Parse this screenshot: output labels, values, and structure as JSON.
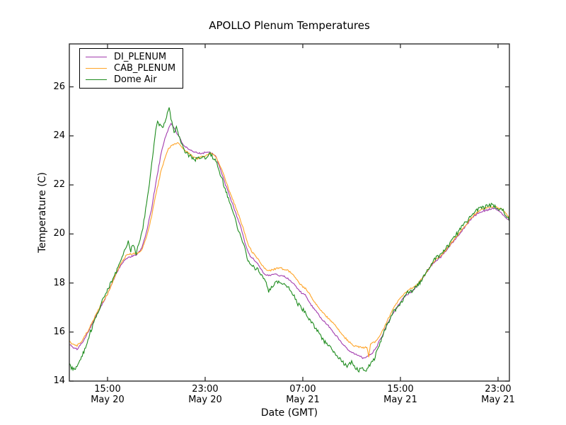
{
  "chart_data": {
    "type": "line",
    "title": "APOLLO Plenum Temperatures",
    "xlabel": "Date (GMT)",
    "ylabel": "Temperature (C)",
    "grid": false,
    "legend_position": "upper left",
    "x_axis_note": "hours since May 20 00:00 GMT",
    "xlim": [
      11.87,
      47.93
    ],
    "ylim": [
      14,
      27.75
    ],
    "yticks": [
      14,
      16,
      18,
      20,
      22,
      24,
      26
    ],
    "xticks": [
      {
        "t": 15,
        "time": "15:00",
        "date": "May 20"
      },
      {
        "t": 23,
        "time": "23:00",
        "date": "May 20"
      },
      {
        "t": 31,
        "time": "07:00",
        "date": "May 21"
      },
      {
        "t": 39,
        "time": "15:00",
        "date": "May 21"
      },
      {
        "t": 47,
        "time": "23:00",
        "date": "May 21"
      }
    ],
    "frame_color": "#2e2e2e",
    "series": [
      {
        "name": "DI_PLENUM",
        "color": "#a23bae",
        "noise": 0.035,
        "points": [
          [
            11.9,
            15.5
          ],
          [
            12.2,
            15.35
          ],
          [
            12.5,
            15.3
          ],
          [
            12.9,
            15.55
          ],
          [
            13.4,
            16.0
          ],
          [
            13.9,
            16.5
          ],
          [
            14.4,
            17.0
          ],
          [
            15.0,
            17.55
          ],
          [
            15.5,
            18.15
          ],
          [
            16.0,
            18.65
          ],
          [
            16.5,
            19.0
          ],
          [
            17.0,
            19.1
          ],
          [
            17.4,
            19.15
          ],
          [
            17.8,
            19.4
          ],
          [
            18.2,
            20.1
          ],
          [
            18.6,
            21.0
          ],
          [
            19.0,
            22.2
          ],
          [
            19.4,
            23.3
          ],
          [
            19.7,
            23.9
          ],
          [
            20.0,
            24.3
          ],
          [
            20.2,
            24.5
          ],
          [
            20.5,
            24.3
          ],
          [
            20.8,
            24.0
          ],
          [
            21.2,
            23.65
          ],
          [
            21.6,
            23.45
          ],
          [
            22.0,
            23.35
          ],
          [
            22.4,
            23.3
          ],
          [
            22.8,
            23.3
          ],
          [
            23.2,
            23.35
          ],
          [
            23.6,
            23.3
          ],
          [
            23.9,
            23.15
          ],
          [
            24.2,
            22.7
          ],
          [
            24.6,
            22.1
          ],
          [
            25.0,
            21.55
          ],
          [
            25.4,
            21.0
          ],
          [
            25.8,
            20.45
          ],
          [
            26.1,
            19.95
          ],
          [
            26.4,
            19.4
          ],
          [
            26.7,
            19.1
          ],
          [
            27.0,
            18.95
          ],
          [
            27.3,
            18.8
          ],
          [
            27.6,
            18.55
          ],
          [
            27.9,
            18.35
          ],
          [
            28.2,
            18.3
          ],
          [
            28.5,
            18.35
          ],
          [
            28.8,
            18.35
          ],
          [
            29.1,
            18.3
          ],
          [
            29.4,
            18.3
          ],
          [
            29.7,
            18.2
          ],
          [
            30.0,
            18.1
          ],
          [
            30.3,
            17.95
          ],
          [
            30.6,
            17.75
          ],
          [
            30.9,
            17.6
          ],
          [
            31.2,
            17.5
          ],
          [
            31.5,
            17.25
          ],
          [
            31.9,
            16.95
          ],
          [
            32.3,
            16.7
          ],
          [
            32.7,
            16.45
          ],
          [
            33.1,
            16.25
          ],
          [
            33.5,
            16.0
          ],
          [
            33.9,
            15.75
          ],
          [
            34.3,
            15.5
          ],
          [
            34.7,
            15.3
          ],
          [
            35.1,
            15.15
          ],
          [
            35.5,
            15.05
          ],
          [
            35.9,
            14.95
          ],
          [
            36.3,
            15.0
          ],
          [
            36.7,
            15.15
          ],
          [
            37.1,
            15.45
          ],
          [
            37.5,
            15.85
          ],
          [
            37.9,
            16.3
          ],
          [
            38.3,
            16.7
          ],
          [
            38.7,
            17.0
          ],
          [
            39.1,
            17.3
          ],
          [
            39.5,
            17.5
          ],
          [
            39.9,
            17.65
          ],
          [
            40.3,
            17.85
          ],
          [
            40.7,
            18.1
          ],
          [
            41.1,
            18.4
          ],
          [
            41.5,
            18.7
          ],
          [
            41.9,
            18.9
          ],
          [
            42.3,
            19.05
          ],
          [
            42.7,
            19.3
          ],
          [
            43.1,
            19.55
          ],
          [
            43.5,
            19.8
          ],
          [
            43.9,
            20.05
          ],
          [
            44.3,
            20.3
          ],
          [
            44.7,
            20.55
          ],
          [
            45.1,
            20.75
          ],
          [
            45.5,
            20.9
          ],
          [
            45.9,
            20.95
          ],
          [
            46.3,
            21.0
          ],
          [
            46.7,
            21.05
          ],
          [
            47.0,
            20.95
          ],
          [
            47.3,
            20.85
          ],
          [
            47.6,
            20.7
          ],
          [
            47.9,
            20.55
          ]
        ]
      },
      {
        "name": "CAB_PLENUM",
        "color": "#ffa428",
        "noise": 0.035,
        "points": [
          [
            11.9,
            15.6
          ],
          [
            12.2,
            15.5
          ],
          [
            12.5,
            15.45
          ],
          [
            12.9,
            15.65
          ],
          [
            13.4,
            16.05
          ],
          [
            13.9,
            16.55
          ],
          [
            14.4,
            17.05
          ],
          [
            15.0,
            17.55
          ],
          [
            15.5,
            18.15
          ],
          [
            16.0,
            18.7
          ],
          [
            16.5,
            19.1
          ],
          [
            17.0,
            19.2
          ],
          [
            17.4,
            19.2
          ],
          [
            17.8,
            19.35
          ],
          [
            18.2,
            19.9
          ],
          [
            18.6,
            20.7
          ],
          [
            19.0,
            21.7
          ],
          [
            19.4,
            22.6
          ],
          [
            19.7,
            23.1
          ],
          [
            20.0,
            23.5
          ],
          [
            20.4,
            23.65
          ],
          [
            20.8,
            23.7
          ],
          [
            21.1,
            23.55
          ],
          [
            21.5,
            23.35
          ],
          [
            21.9,
            23.2
          ],
          [
            22.3,
            23.05
          ],
          [
            22.7,
            23.15
          ],
          [
            23.1,
            23.2
          ],
          [
            23.5,
            23.3
          ],
          [
            23.8,
            23.2
          ],
          [
            24.0,
            23.0
          ],
          [
            24.3,
            22.7
          ],
          [
            24.7,
            22.15
          ],
          [
            25.1,
            21.6
          ],
          [
            25.5,
            21.1
          ],
          [
            25.9,
            20.55
          ],
          [
            26.2,
            20.1
          ],
          [
            26.5,
            19.6
          ],
          [
            26.8,
            19.3
          ],
          [
            27.1,
            19.1
          ],
          [
            27.4,
            18.95
          ],
          [
            27.7,
            18.7
          ],
          [
            28.0,
            18.55
          ],
          [
            28.3,
            18.5
          ],
          [
            28.6,
            18.55
          ],
          [
            28.9,
            18.6
          ],
          [
            29.2,
            18.6
          ],
          [
            29.5,
            18.55
          ],
          [
            29.8,
            18.5
          ],
          [
            30.1,
            18.4
          ],
          [
            30.4,
            18.2
          ],
          [
            30.7,
            18.0
          ],
          [
            31.0,
            17.85
          ],
          [
            31.3,
            17.75
          ],
          [
            31.6,
            17.5
          ],
          [
            32.0,
            17.2
          ],
          [
            32.4,
            16.95
          ],
          [
            32.8,
            16.7
          ],
          [
            33.2,
            16.5
          ],
          [
            33.6,
            16.3
          ],
          [
            34.0,
            16.05
          ],
          [
            34.4,
            15.8
          ],
          [
            34.8,
            15.6
          ],
          [
            35.2,
            15.45
          ],
          [
            35.6,
            15.4
          ],
          [
            36.0,
            15.35
          ],
          [
            36.25,
            15.4
          ],
          [
            36.4,
            15.0
          ],
          [
            36.55,
            15.5
          ],
          [
            36.9,
            15.6
          ],
          [
            37.2,
            15.75
          ],
          [
            37.6,
            16.1
          ],
          [
            38.0,
            16.55
          ],
          [
            38.4,
            16.95
          ],
          [
            38.8,
            17.25
          ],
          [
            39.2,
            17.5
          ],
          [
            39.6,
            17.7
          ],
          [
            40.0,
            17.8
          ],
          [
            40.4,
            17.95
          ],
          [
            40.8,
            18.2
          ],
          [
            41.2,
            18.5
          ],
          [
            41.6,
            18.8
          ],
          [
            42.0,
            19.0
          ],
          [
            42.4,
            19.15
          ],
          [
            42.8,
            19.4
          ],
          [
            43.2,
            19.65
          ],
          [
            43.6,
            19.9
          ],
          [
            44.0,
            20.15
          ],
          [
            44.4,
            20.4
          ],
          [
            44.8,
            20.65
          ],
          [
            45.2,
            20.85
          ],
          [
            45.6,
            21.0
          ],
          [
            46.0,
            21.05
          ],
          [
            46.4,
            21.1
          ],
          [
            46.8,
            21.15
          ],
          [
            47.1,
            21.05
          ],
          [
            47.4,
            20.95
          ],
          [
            47.7,
            20.8
          ],
          [
            47.9,
            20.65
          ]
        ]
      },
      {
        "name": "Dome Air",
        "color": "#1e8c1e",
        "noise": 0.085,
        "points": [
          [
            11.9,
            14.65
          ],
          [
            12.1,
            14.5
          ],
          [
            12.3,
            14.45
          ],
          [
            12.5,
            14.55
          ],
          [
            12.8,
            14.85
          ],
          [
            13.2,
            15.4
          ],
          [
            13.6,
            16.0
          ],
          [
            14.0,
            16.55
          ],
          [
            14.5,
            17.2
          ],
          [
            15.0,
            17.75
          ],
          [
            15.5,
            18.25
          ],
          [
            16.0,
            18.75
          ],
          [
            16.4,
            19.3
          ],
          [
            16.7,
            19.65
          ],
          [
            16.9,
            19.3
          ],
          [
            17.1,
            19.6
          ],
          [
            17.35,
            19.2
          ],
          [
            17.6,
            19.7
          ],
          [
            17.9,
            20.3
          ],
          [
            18.2,
            21.2
          ],
          [
            18.5,
            22.3
          ],
          [
            18.75,
            23.4
          ],
          [
            18.95,
            24.2
          ],
          [
            19.1,
            24.65
          ],
          [
            19.3,
            24.4
          ],
          [
            19.5,
            24.3
          ],
          [
            19.7,
            24.6
          ],
          [
            19.9,
            24.9
          ],
          [
            20.05,
            25.15
          ],
          [
            20.2,
            24.7
          ],
          [
            20.45,
            24.2
          ],
          [
            20.65,
            24.3
          ],
          [
            20.9,
            23.9
          ],
          [
            21.2,
            23.5
          ],
          [
            21.5,
            23.25
          ],
          [
            21.8,
            23.15
          ],
          [
            22.2,
            23.05
          ],
          [
            22.6,
            23.15
          ],
          [
            23.0,
            23.1
          ],
          [
            23.4,
            23.25
          ],
          [
            23.7,
            23.1
          ],
          [
            23.95,
            22.9
          ],
          [
            24.3,
            22.35
          ],
          [
            24.7,
            21.75
          ],
          [
            25.1,
            21.15
          ],
          [
            25.5,
            20.55
          ],
          [
            25.9,
            19.85
          ],
          [
            26.2,
            19.45
          ],
          [
            26.5,
            18.95
          ],
          [
            26.8,
            18.75
          ],
          [
            27.1,
            18.6
          ],
          [
            27.4,
            18.5
          ],
          [
            27.7,
            18.25
          ],
          [
            28.0,
            17.95
          ],
          [
            28.2,
            17.6
          ],
          [
            28.5,
            17.9
          ],
          [
            28.8,
            18.05
          ],
          [
            29.1,
            18.0
          ],
          [
            29.4,
            17.95
          ],
          [
            29.7,
            17.85
          ],
          [
            30.0,
            17.7
          ],
          [
            30.3,
            17.5
          ],
          [
            30.6,
            17.15
          ],
          [
            30.9,
            16.95
          ],
          [
            31.2,
            16.85
          ],
          [
            31.5,
            16.55
          ],
          [
            31.9,
            16.25
          ],
          [
            32.3,
            15.95
          ],
          [
            32.7,
            15.65
          ],
          [
            33.1,
            15.45
          ],
          [
            33.5,
            15.2
          ],
          [
            33.9,
            14.95
          ],
          [
            34.3,
            14.75
          ],
          [
            34.7,
            14.6
          ],
          [
            35.0,
            14.8
          ],
          [
            35.3,
            14.55
          ],
          [
            35.6,
            14.45
          ],
          [
            35.9,
            14.55
          ],
          [
            36.2,
            14.45
          ],
          [
            36.5,
            14.65
          ],
          [
            36.8,
            14.85
          ],
          [
            37.2,
            15.35
          ],
          [
            37.6,
            15.95
          ],
          [
            38.0,
            16.4
          ],
          [
            38.4,
            16.8
          ],
          [
            38.8,
            17.05
          ],
          [
            39.2,
            17.3
          ],
          [
            39.6,
            17.6
          ],
          [
            40.0,
            17.7
          ],
          [
            40.4,
            17.9
          ],
          [
            40.8,
            18.15
          ],
          [
            41.2,
            18.5
          ],
          [
            41.6,
            18.85
          ],
          [
            42.0,
            19.05
          ],
          [
            42.4,
            19.2
          ],
          [
            42.8,
            19.45
          ],
          [
            43.2,
            19.7
          ],
          [
            43.6,
            20.0
          ],
          [
            44.0,
            20.25
          ],
          [
            44.4,
            20.5
          ],
          [
            44.8,
            20.75
          ],
          [
            45.2,
            20.95
          ],
          [
            45.6,
            21.05
          ],
          [
            46.0,
            21.1
          ],
          [
            46.3,
            21.2
          ],
          [
            46.6,
            21.15
          ],
          [
            46.9,
            21.05
          ],
          [
            47.2,
            21.0
          ],
          [
            47.5,
            20.9
          ],
          [
            47.9,
            20.55
          ]
        ]
      }
    ]
  }
}
